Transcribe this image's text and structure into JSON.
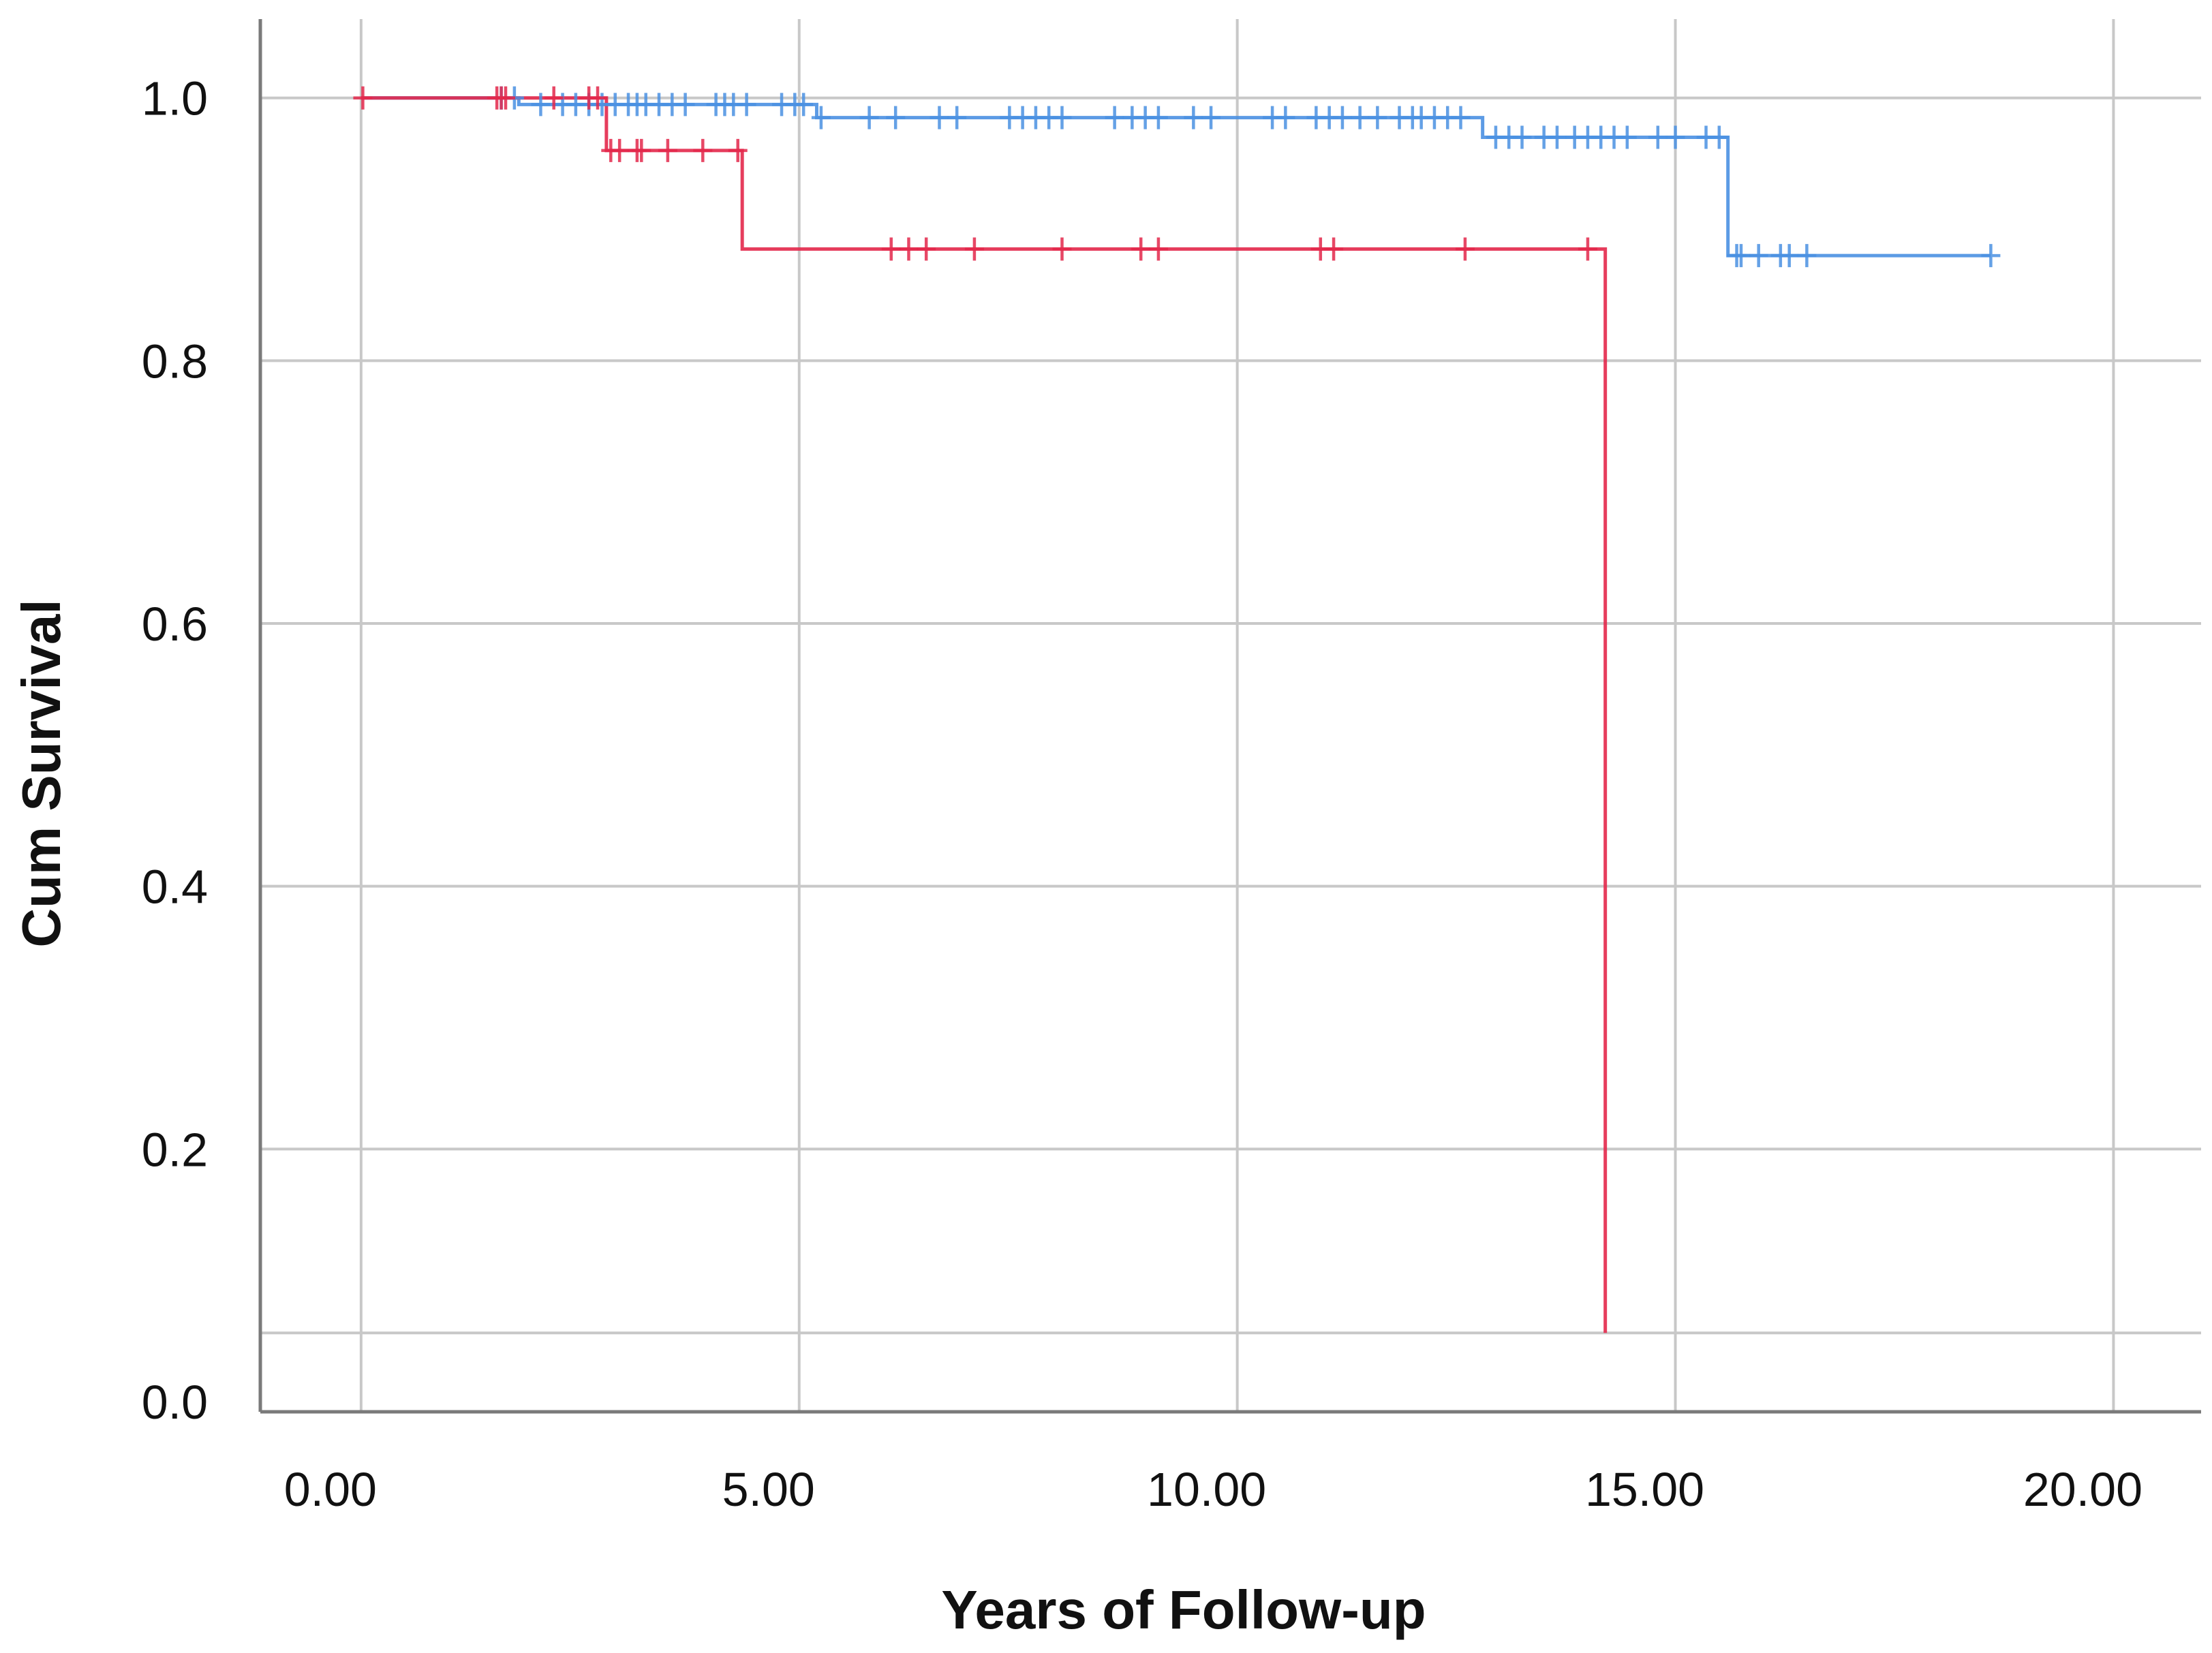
{
  "chart_data": {
    "type": "line",
    "subtype": "kaplan-meier",
    "xlabel": "Years of Follow-up",
    "ylabel": "Cum Survival",
    "xlim": [
      -1.15,
      21.0
    ],
    "ylim": [
      0.0,
      1.06
    ],
    "x_ticks": [
      0,
      5,
      10,
      15,
      20
    ],
    "x_tick_labels": [
      "0.00",
      "5.00",
      "10.00",
      "15.00",
      "20.00"
    ],
    "y_ticks": [
      0.0,
      0.2,
      0.4,
      0.6,
      0.8,
      1.0
    ],
    "y_tick_labels": [
      "0.0",
      "0.2",
      "0.4",
      "0.6",
      "0.8",
      "1.0"
    ],
    "grid": true,
    "legend": "none",
    "series": [
      {
        "color": "#4a90e2",
        "steps": [
          {
            "x": 0.0,
            "y": 1.0
          },
          {
            "x": 1.8,
            "y": 0.995
          },
          {
            "x": 5.2,
            "y": 0.985
          },
          {
            "x": 12.8,
            "y": 0.97
          },
          {
            "x": 15.6,
            "y": 0.88
          },
          {
            "x": 18.6,
            "y": 0.88
          }
        ],
        "censored": [
          {
            "x": 1.6,
            "y": 1.0
          },
          {
            "x": 1.75,
            "y": 1.0
          },
          {
            "x": 2.05,
            "y": 0.995
          },
          {
            "x": 2.3,
            "y": 0.995
          },
          {
            "x": 2.45,
            "y": 0.995
          },
          {
            "x": 2.6,
            "y": 0.995
          },
          {
            "x": 2.75,
            "y": 0.995
          },
          {
            "x": 2.9,
            "y": 0.995
          },
          {
            "x": 3.05,
            "y": 0.995
          },
          {
            "x": 3.15,
            "y": 0.995
          },
          {
            "x": 3.25,
            "y": 0.995
          },
          {
            "x": 3.4,
            "y": 0.995
          },
          {
            "x": 3.55,
            "y": 0.995
          },
          {
            "x": 3.7,
            "y": 0.995
          },
          {
            "x": 4.05,
            "y": 0.995
          },
          {
            "x": 4.15,
            "y": 0.995
          },
          {
            "x": 4.25,
            "y": 0.995
          },
          {
            "x": 4.4,
            "y": 0.995
          },
          {
            "x": 4.8,
            "y": 0.995
          },
          {
            "x": 4.95,
            "y": 0.995
          },
          {
            "x": 5.05,
            "y": 0.995
          },
          {
            "x": 5.25,
            "y": 0.985
          },
          {
            "x": 5.8,
            "y": 0.985
          },
          {
            "x": 6.1,
            "y": 0.985
          },
          {
            "x": 6.6,
            "y": 0.985
          },
          {
            "x": 6.8,
            "y": 0.985
          },
          {
            "x": 7.4,
            "y": 0.985
          },
          {
            "x": 7.55,
            "y": 0.985
          },
          {
            "x": 7.7,
            "y": 0.985
          },
          {
            "x": 7.85,
            "y": 0.985
          },
          {
            "x": 8.0,
            "y": 0.985
          },
          {
            "x": 8.6,
            "y": 0.985
          },
          {
            "x": 8.8,
            "y": 0.985
          },
          {
            "x": 8.95,
            "y": 0.985
          },
          {
            "x": 9.1,
            "y": 0.985
          },
          {
            "x": 9.5,
            "y": 0.985
          },
          {
            "x": 9.7,
            "y": 0.985
          },
          {
            "x": 10.4,
            "y": 0.985
          },
          {
            "x": 10.55,
            "y": 0.985
          },
          {
            "x": 10.9,
            "y": 0.985
          },
          {
            "x": 11.05,
            "y": 0.985
          },
          {
            "x": 11.2,
            "y": 0.985
          },
          {
            "x": 11.4,
            "y": 0.985
          },
          {
            "x": 11.6,
            "y": 0.985
          },
          {
            "x": 11.85,
            "y": 0.985
          },
          {
            "x": 12.0,
            "y": 0.985
          },
          {
            "x": 12.1,
            "y": 0.985
          },
          {
            "x": 12.25,
            "y": 0.985
          },
          {
            "x": 12.4,
            "y": 0.985
          },
          {
            "x": 12.55,
            "y": 0.985
          },
          {
            "x": 12.95,
            "y": 0.97
          },
          {
            "x": 13.1,
            "y": 0.97
          },
          {
            "x": 13.25,
            "y": 0.97
          },
          {
            "x": 13.5,
            "y": 0.97
          },
          {
            "x": 13.65,
            "y": 0.97
          },
          {
            "x": 13.85,
            "y": 0.97
          },
          {
            "x": 14.0,
            "y": 0.97
          },
          {
            "x": 14.15,
            "y": 0.97
          },
          {
            "x": 14.3,
            "y": 0.97
          },
          {
            "x": 14.45,
            "y": 0.97
          },
          {
            "x": 14.8,
            "y": 0.97
          },
          {
            "x": 15.0,
            "y": 0.97
          },
          {
            "x": 15.35,
            "y": 0.97
          },
          {
            "x": 15.5,
            "y": 0.97
          },
          {
            "x": 15.7,
            "y": 0.88
          },
          {
            "x": 15.75,
            "y": 0.88
          },
          {
            "x": 15.95,
            "y": 0.88
          },
          {
            "x": 16.2,
            "y": 0.88
          },
          {
            "x": 16.3,
            "y": 0.88
          },
          {
            "x": 16.5,
            "y": 0.88
          },
          {
            "x": 18.6,
            "y": 0.88
          }
        ]
      },
      {
        "color": "#e3284b",
        "steps": [
          {
            "x": 0.0,
            "y": 1.0
          },
          {
            "x": 2.8,
            "y": 0.96
          },
          {
            "x": 4.35,
            "y": 0.885
          },
          {
            "x": 14.2,
            "y": 0.06
          }
        ],
        "censored": [
          {
            "x": 0.02,
            "y": 1.0
          },
          {
            "x": 1.55,
            "y": 1.0
          },
          {
            "x": 1.6,
            "y": 1.0
          },
          {
            "x": 1.65,
            "y": 1.0
          },
          {
            "x": 2.2,
            "y": 1.0
          },
          {
            "x": 2.6,
            "y": 1.0
          },
          {
            "x": 2.7,
            "y": 1.0
          },
          {
            "x": 2.85,
            "y": 0.96
          },
          {
            "x": 2.95,
            "y": 0.96
          },
          {
            "x": 3.15,
            "y": 0.96
          },
          {
            "x": 3.2,
            "y": 0.96
          },
          {
            "x": 3.5,
            "y": 0.96
          },
          {
            "x": 3.9,
            "y": 0.96
          },
          {
            "x": 4.3,
            "y": 0.96
          },
          {
            "x": 6.05,
            "y": 0.885
          },
          {
            "x": 6.25,
            "y": 0.885
          },
          {
            "x": 6.45,
            "y": 0.885
          },
          {
            "x": 7.0,
            "y": 0.885
          },
          {
            "x": 8.0,
            "y": 0.885
          },
          {
            "x": 8.9,
            "y": 0.885
          },
          {
            "x": 9.1,
            "y": 0.885
          },
          {
            "x": 10.95,
            "y": 0.885
          },
          {
            "x": 11.1,
            "y": 0.885
          },
          {
            "x": 12.6,
            "y": 0.885
          },
          {
            "x": 14.0,
            "y": 0.885
          }
        ]
      }
    ]
  }
}
